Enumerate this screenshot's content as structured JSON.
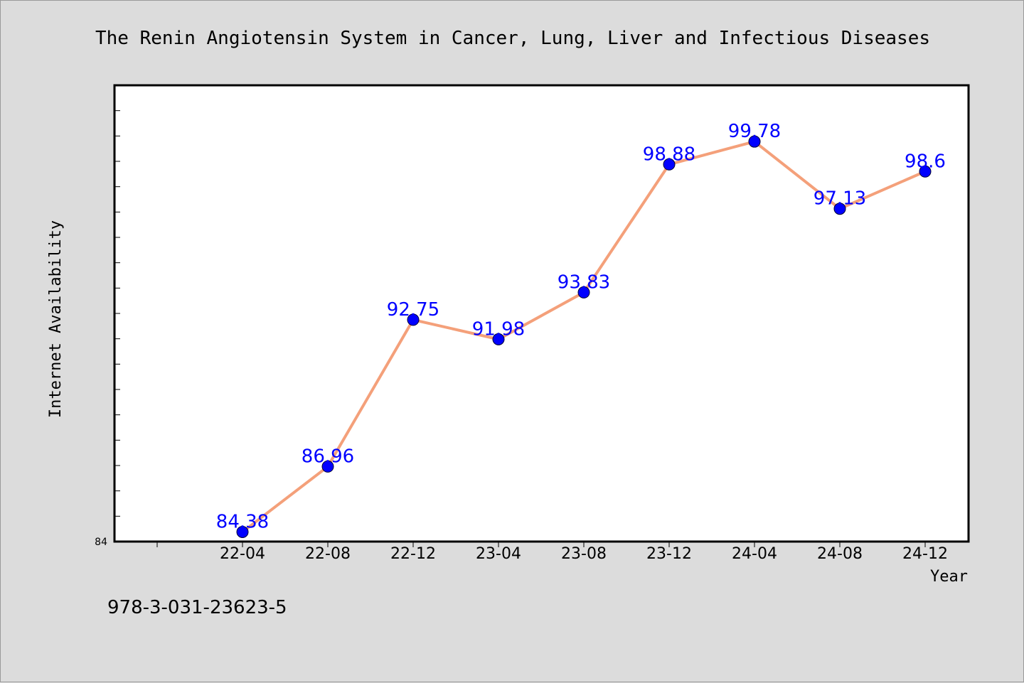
{
  "footer_text": "978-3-031-23623-5",
  "y_axis_min_label": "84",
  "colors": {
    "background": "#dcdcdc",
    "plot_background": "#ffffff",
    "line": "#f4a07a",
    "marker": "#0000ff",
    "data_label": "#0000ff"
  },
  "chart_data": {
    "type": "line",
    "title": "The Renin Angiotensin System in Cancer, Lung, Liver and Infectious Diseases",
    "xlabel": "Year",
    "ylabel": "Internet Availability",
    "categories": [
      "22-04",
      "22-08",
      "22-12",
      "23-04",
      "23-08",
      "23-12",
      "24-04",
      "24-08",
      "24-12"
    ],
    "series": [
      {
        "values": [
          84.38,
          86.96,
          92.75,
          91.98,
          93.83,
          98.88,
          99.78,
          97.13,
          98.6
        ],
        "labels": [
          "84.38",
          "86.96",
          "92.75",
          "91.98",
          "93.83",
          "98.88",
          "99.78",
          "97.13",
          "98.6"
        ]
      }
    ],
    "ylim": [
      84,
      102
    ],
    "grid": false,
    "legend": "none"
  }
}
